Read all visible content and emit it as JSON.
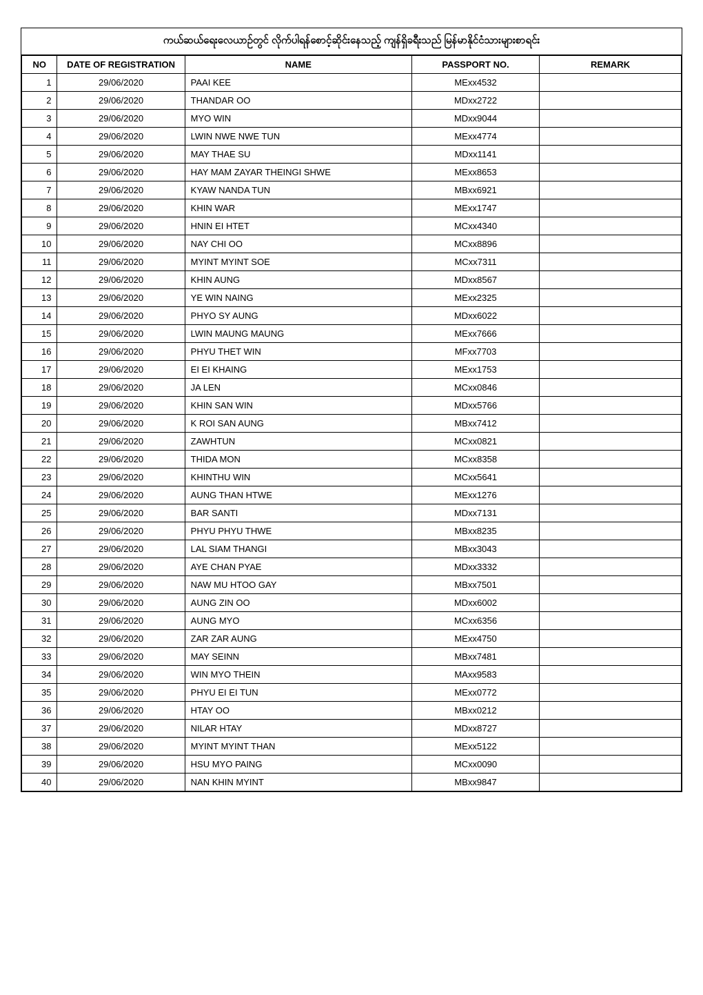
{
  "title": "ကယ်ဆယ်ရေးလေယာဉ်တွင် လိုက်ပါရန်စောင့်ဆိုင်းနေသည့် ကျန်ရှိခရီးသည် မြန်မာနိုင်ငံသားများစာရင်း",
  "columns": {
    "no": "NO",
    "date": "DATE OF REGISTRATION",
    "name": "NAME",
    "passport": "PASSPORT NO.",
    "remark": "REMARK"
  },
  "rows": [
    {
      "no": "1",
      "date": "29/06/2020",
      "name": "PAAI KEE",
      "passport": "MExx4532",
      "remark": ""
    },
    {
      "no": "2",
      "date": "29/06/2020",
      "name": "THANDAR OO",
      "passport": "MDxx2722",
      "remark": ""
    },
    {
      "no": "3",
      "date": "29/06/2020",
      "name": "MYO WIN",
      "passport": "MDxx9044",
      "remark": ""
    },
    {
      "no": "4",
      "date": "29/06/2020",
      "name": "LWIN NWE NWE TUN",
      "passport": "MExx4774",
      "remark": ""
    },
    {
      "no": "5",
      "date": "29/06/2020",
      "name": "MAY THAE SU",
      "passport": "MDxx1141",
      "remark": ""
    },
    {
      "no": "6",
      "date": "29/06/2020",
      "name": "HAY MAM ZAYAR THEINGI SHWE",
      "passport": "MExx8653",
      "remark": ""
    },
    {
      "no": "7",
      "date": "29/06/2020",
      "name": "KYAW NANDA TUN",
      "passport": "MBxx6921",
      "remark": ""
    },
    {
      "no": "8",
      "date": "29/06/2020",
      "name": "KHIN WAR",
      "passport": "MExx1747",
      "remark": ""
    },
    {
      "no": "9",
      "date": "29/06/2020",
      "name": "HNIN EI HTET",
      "passport": "MCxx4340",
      "remark": ""
    },
    {
      "no": "10",
      "date": "29/06/2020",
      "name": "NAY CHI OO",
      "passport": "MCxx8896",
      "remark": ""
    },
    {
      "no": "11",
      "date": "29/06/2020",
      "name": "MYINT MYINT SOE",
      "passport": "MCxx7311",
      "remark": ""
    },
    {
      "no": "12",
      "date": "29/06/2020",
      "name": "KHIN AUNG",
      "passport": "MDxx8567",
      "remark": ""
    },
    {
      "no": "13",
      "date": "29/06/2020",
      "name": "YE WIN NAING",
      "passport": "MExx2325",
      "remark": ""
    },
    {
      "no": "14",
      "date": "29/06/2020",
      "name": "PHYO SY AUNG",
      "passport": "MDxx6022",
      "remark": ""
    },
    {
      "no": "15",
      "date": "29/06/2020",
      "name": "LWIN MAUNG MAUNG",
      "passport": "MExx7666",
      "remark": ""
    },
    {
      "no": "16",
      "date": "29/06/2020",
      "name": "PHYU THET WIN",
      "passport": "MFxx7703",
      "remark": ""
    },
    {
      "no": "17",
      "date": "29/06/2020",
      "name": "EI EI KHAING",
      "passport": "MExx1753",
      "remark": ""
    },
    {
      "no": "18",
      "date": "29/06/2020",
      "name": "JA LEN",
      "passport": "MCxx0846",
      "remark": ""
    },
    {
      "no": "19",
      "date": "29/06/2020",
      "name": "KHIN SAN WIN",
      "passport": "MDxx5766",
      "remark": ""
    },
    {
      "no": "20",
      "date": "29/06/2020",
      "name": "K ROI SAN AUNG",
      "passport": "MBxx7412",
      "remark": ""
    },
    {
      "no": "21",
      "date": "29/06/2020",
      "name": "ZAWHTUN",
      "passport": "MCxx0821",
      "remark": ""
    },
    {
      "no": "22",
      "date": "29/06/2020",
      "name": "THIDA MON",
      "passport": "MCxx8358",
      "remark": ""
    },
    {
      "no": "23",
      "date": "29/06/2020",
      "name": "KHINTHU WIN",
      "passport": "MCxx5641",
      "remark": ""
    },
    {
      "no": "24",
      "date": "29/06/2020",
      "name": "AUNG THAN HTWE",
      "passport": "MExx1276",
      "remark": ""
    },
    {
      "no": "25",
      "date": "29/06/2020",
      "name": "BAR SANTI",
      "passport": "MDxx7131",
      "remark": ""
    },
    {
      "no": "26",
      "date": "29/06/2020",
      "name": "PHYU PHYU THWE",
      "passport": "MBxx8235",
      "remark": ""
    },
    {
      "no": "27",
      "date": "29/06/2020",
      "name": "LAL SIAM THANGI",
      "passport": "MBxx3043",
      "remark": ""
    },
    {
      "no": "28",
      "date": "29/06/2020",
      "name": "AYE CHAN PYAE",
      "passport": "MDxx3332",
      "remark": ""
    },
    {
      "no": "29",
      "date": "29/06/2020",
      "name": "NAW MU HTOO GAY",
      "passport": "MBxx7501",
      "remark": ""
    },
    {
      "no": "30",
      "date": "29/06/2020",
      "name": "AUNG ZIN OO",
      "passport": "MDxx6002",
      "remark": ""
    },
    {
      "no": "31",
      "date": "29/06/2020",
      "name": "AUNG MYO",
      "passport": "MCxx6356",
      "remark": ""
    },
    {
      "no": "32",
      "date": "29/06/2020",
      "name": "ZAR ZAR AUNG",
      "passport": "MExx4750",
      "remark": ""
    },
    {
      "no": "33",
      "date": "29/06/2020",
      "name": "MAY SEINN",
      "passport": "MBxx7481",
      "remark": ""
    },
    {
      "no": "34",
      "date": "29/06/2020",
      "name": "WIN MYO THEIN",
      "passport": "MAxx9583",
      "remark": ""
    },
    {
      "no": "35",
      "date": "29/06/2020",
      "name": "PHYU EI EI TUN",
      "passport": "MExx0772",
      "remark": ""
    },
    {
      "no": "36",
      "date": "29/06/2020",
      "name": "HTAY OO",
      "passport": "MBxx0212",
      "remark": ""
    },
    {
      "no": "37",
      "date": "29/06/2020",
      "name": "NILAR HTAY",
      "passport": "MDxx8727",
      "remark": ""
    },
    {
      "no": "38",
      "date": "29/06/2020",
      "name": "MYINT MYINT THAN",
      "passport": "MExx5122",
      "remark": ""
    },
    {
      "no": "39",
      "date": "29/06/2020",
      "name": "HSU MYO PAING",
      "passport": "MCxx0090",
      "remark": ""
    },
    {
      "no": "40",
      "date": "29/06/2020",
      "name": "NAN KHIN MYINT",
      "passport": "MBxx9847",
      "remark": ""
    }
  ],
  "styling": {
    "border_color": "#000000",
    "background_color": "#ffffff",
    "header_fontsize": 13,
    "cell_fontsize": 13,
    "title_fontsize": 15,
    "font_family": "Arial"
  }
}
